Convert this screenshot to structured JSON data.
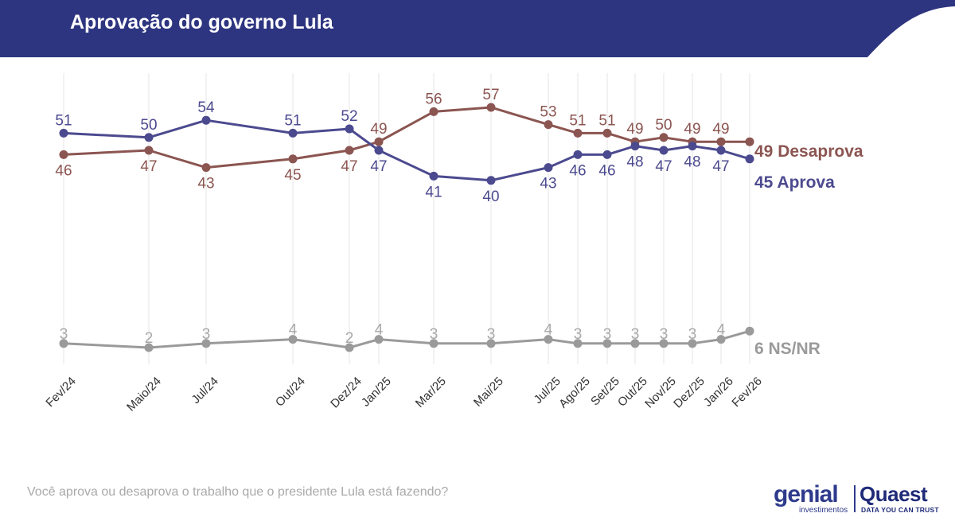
{
  "header": {
    "title": "Aprovação do governo Lula",
    "color": "#2e3580"
  },
  "footer": {
    "question": "Você aprova ou desaprova o trabalho que o presidente Lula está fazendo?",
    "logo_genial": "genial",
    "logo_genial_sub": "investimentos",
    "logo_quaest": "Quaest",
    "logo_quaest_sub": "DATA YOU CAN TRUST"
  },
  "chart_data": {
    "type": "line",
    "grid": "vertical lines at each survey date",
    "categories": [
      "Fev/24",
      "Maio/24",
      "Jul/24",
      "Out/24",
      "Dez/24",
      "Jan/25",
      "Mar/25",
      "Mai/25",
      "Jul/25",
      "Ago/25",
      "Set/25",
      "Out/25",
      "Nov/25",
      "Dez/25",
      "Jan/26",
      "Fev/26"
    ],
    "series": [
      {
        "name": "Desaprova",
        "end_label": "49 Desaprova",
        "color": "#8b5551",
        "values": [
          46,
          47,
          43,
          45,
          47,
          49,
          56,
          57,
          53,
          51,
          51,
          49,
          50,
          49,
          49,
          49
        ]
      },
      {
        "name": "Aprova",
        "end_label": "45 Aprova",
        "color": "#4c4a8f",
        "values": [
          51,
          50,
          54,
          51,
          52,
          47,
          41,
          40,
          43,
          46,
          46,
          48,
          47,
          48,
          47,
          45
        ]
      },
      {
        "name": "NS/NR",
        "end_label": "6 NS/NR",
        "color": "#9a9a9a",
        "values": [
          3,
          2,
          3,
          4,
          2,
          4,
          3,
          3,
          4,
          3,
          3,
          3,
          3,
          3,
          4,
          6
        ]
      }
    ]
  }
}
